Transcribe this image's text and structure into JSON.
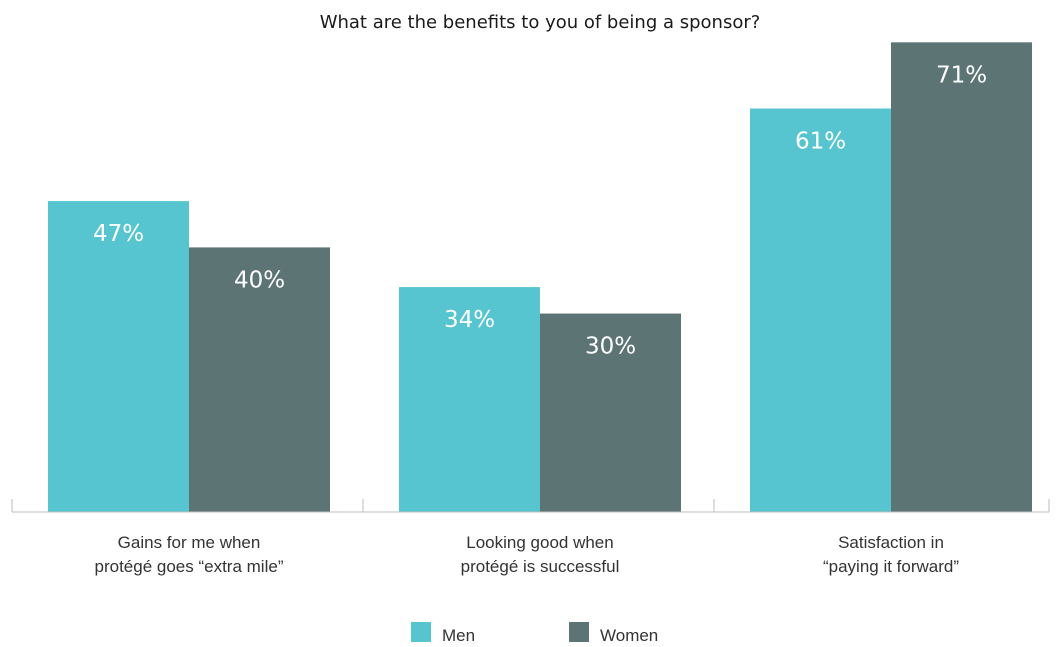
{
  "chart_data": {
    "type": "bar",
    "title": "What are the benefits to you of being a sponsor?",
    "xlabel": "",
    "ylabel": "",
    "ylim": [
      0,
      75
    ],
    "categories": [
      [
        "Gains for me when",
        "protégé goes “extra mile”"
      ],
      [
        "Looking good when",
        "protégé is successful"
      ],
      [
        "Satisfaction in",
        "“paying it forward”"
      ]
    ],
    "series": [
      {
        "name": "Men",
        "color": "#57c5d0",
        "values": [
          47,
          34,
          61
        ],
        "labels": [
          "47%",
          "34%",
          "61%"
        ]
      },
      {
        "name": "Women",
        "color": "#5c7574",
        "values": [
          40,
          30,
          71
        ],
        "labels": [
          "40%",
          "30%",
          "71%"
        ]
      }
    ],
    "grid": false,
    "legend_position": "bottom-center"
  }
}
